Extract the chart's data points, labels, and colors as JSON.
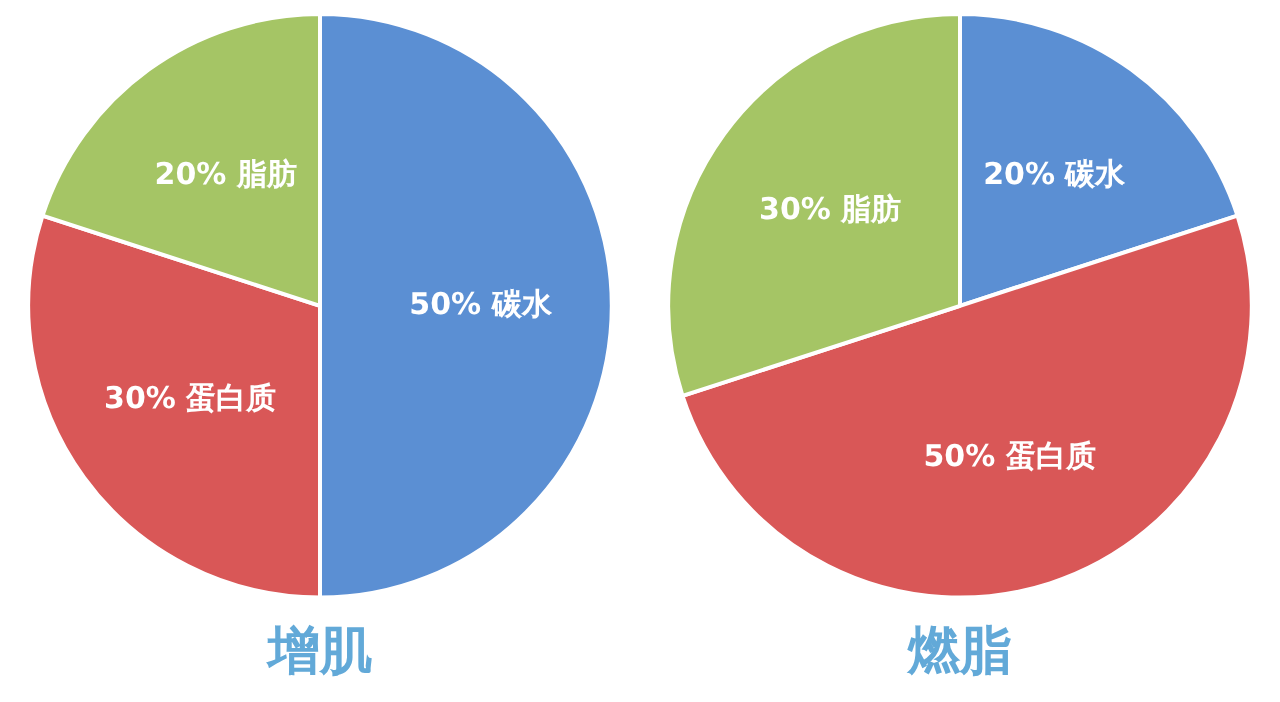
{
  "chart_data": [
    {
      "type": "pie",
      "title": "增肌",
      "categories": [
        "碳水",
        "蛋白质",
        "脂肪"
      ],
      "values": [
        50,
        30,
        20
      ],
      "colors": [
        "#5b8fd3",
        "#d95757",
        "#a5c565"
      ],
      "value_labels": [
        "50%",
        "30%",
        "20%"
      ],
      "legend": false
    },
    {
      "type": "pie",
      "title": "燃脂",
      "categories": [
        "碳水",
        "蛋白质",
        "脂肪"
      ],
      "values": [
        20,
        50,
        30
      ],
      "colors": [
        "#5b8fd3",
        "#d95757",
        "#a5c565"
      ],
      "value_labels": [
        "20%",
        "50%",
        "30%"
      ],
      "legend": false
    }
  ]
}
